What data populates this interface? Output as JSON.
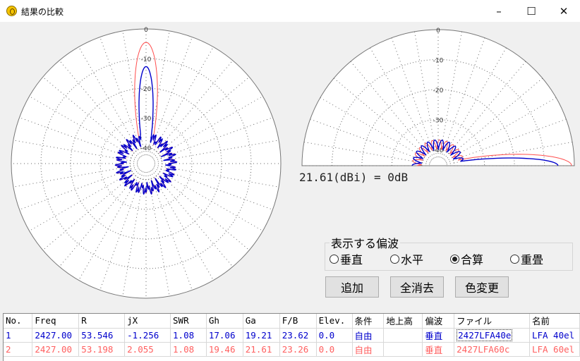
{
  "window": {
    "title": "結果の比較",
    "minimize_glyph": "–",
    "maximize_glyph": "☐",
    "close_glyph": "✕"
  },
  "plot": {
    "left_ring_labels": [
      "0",
      "-10",
      "-20",
      "-30",
      "-40"
    ],
    "right_ring_labels": [
      "0",
      "-10",
      "-20",
      "-30",
      "-40"
    ],
    "reference": "21.61(dBi) = 0dB",
    "colors": {
      "series1": "#0000cc",
      "series2": "#ff4d4d",
      "grid": "#666666"
    }
  },
  "polarization": {
    "title": "表示する偏波",
    "options": [
      {
        "label": "垂直",
        "selected": false
      },
      {
        "label": "水平",
        "selected": false
      },
      {
        "label": "合算",
        "selected": true
      },
      {
        "label": "重畳",
        "selected": false
      }
    ]
  },
  "buttons": {
    "add": "追加",
    "clear_all": "全消去",
    "color_change": "色変更"
  },
  "table": {
    "headers": [
      "No.",
      "Freq",
      "R",
      "jX",
      "SWR",
      "Gh",
      "Ga",
      "F/B",
      "Elev.",
      "条件",
      "地上高",
      "偏波",
      "ファイル",
      "名前"
    ],
    "rows": [
      [
        "1",
        "2427.00",
        "53.546",
        "-1.256",
        "1.08",
        "17.06",
        "19.21",
        "23.62",
        "0.0",
        "自由",
        "",
        "垂直",
        "2427LFA40e",
        "LFA 40el"
      ],
      [
        "2",
        "2427.00",
        "53.198",
        "2.055",
        "1.08",
        "19.46",
        "21.61",
        "23.26",
        "0.0",
        "自由",
        "",
        "垂直",
        "2427LFA60c",
        "LFA 60el"
      ]
    ]
  }
}
